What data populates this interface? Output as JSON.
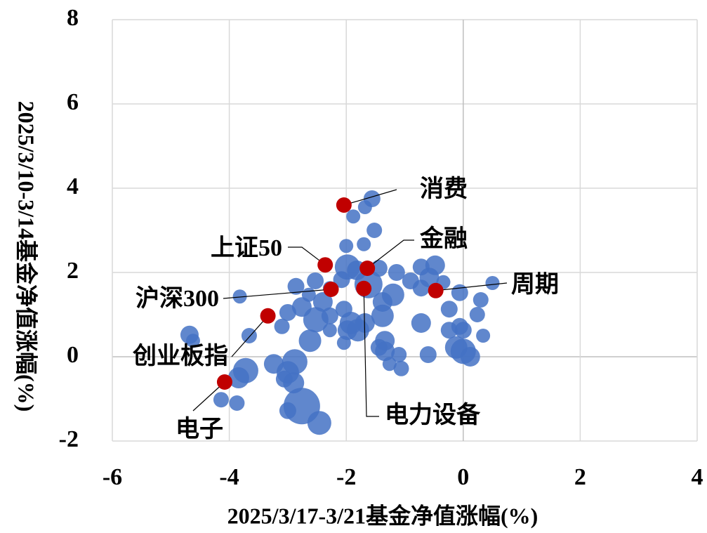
{
  "chart_data": {
    "type": "bubble",
    "xlabel": "2025/3/17-3/21基金净值涨幅(%)",
    "ylabel": "2025/3/10-3/14基金净值涨幅(%)",
    "xlim": [
      -6,
      4
    ],
    "ylim": [
      -2,
      8
    ],
    "xticks": [
      -6,
      -4,
      -2,
      0,
      2,
      4
    ],
    "yticks": [
      -2,
      0,
      2,
      4,
      6,
      8
    ],
    "grid": true,
    "series": [
      {
        "color": "#4472c4",
        "x": [
          -1.56,
          -1.68,
          -1.88,
          -1.52,
          -2.0,
          -1.7,
          -1.98,
          -1.82,
          -1.44,
          -2.53,
          -2.28,
          -2.08,
          -1.62,
          -1.14,
          -0.9,
          -0.58,
          -0.48,
          -0.34,
          -0.72,
          -1.2,
          -1.38,
          -0.06,
          0.3,
          0.5,
          -2.86,
          -2.64,
          -2.4,
          -2.76,
          -3.0,
          -2.52,
          -2.28,
          -2.04,
          -1.92,
          -1.68,
          -1.38,
          -3.82,
          -3.1,
          -3.66,
          -2.62,
          -2.28,
          -1.98,
          -1.8,
          -0.72,
          -0.06,
          0.24,
          -0.24,
          0,
          -4.68,
          -4.62,
          -2.04,
          -1.44,
          -1.34,
          -1.1,
          -0.6,
          -0.12,
          0,
          0.12,
          -1.26,
          -1.06,
          -3.24,
          -3.0,
          -2.88,
          -3.72,
          -3.84,
          -3.06,
          -2.9,
          -2.76,
          -3.0,
          -2.46,
          -3.87,
          -4.14,
          -1.34,
          0.34,
          -0.24,
          -0.72
        ],
        "values": [
          3.75,
          3.55,
          3.33,
          3.0,
          2.63,
          2.67,
          2.13,
          2.05,
          2.1,
          1.8,
          1.63,
          1.83,
          1.72,
          2.0,
          1.8,
          1.88,
          2.17,
          1.77,
          1.63,
          1.47,
          1.3,
          1.52,
          1.35,
          1.75,
          1.67,
          1.47,
          1.3,
          1.18,
          1.05,
          0.88,
          0.97,
          1.13,
          0.8,
          0.8,
          0.97,
          1.43,
          0.72,
          0.5,
          0.38,
          0.63,
          0.63,
          0.63,
          0.8,
          0.72,
          1.0,
          0.63,
          0.63,
          0.52,
          0.38,
          0.33,
          0.22,
          0.13,
          0.05,
          0.05,
          0.22,
          0.13,
          0,
          -0.17,
          -0.28,
          -0.17,
          -0.37,
          -0.12,
          -0.33,
          -0.5,
          -0.53,
          -0.62,
          -1.17,
          -1.28,
          -1.57,
          -1.1,
          -1.02,
          0.38,
          0.5,
          1.13,
          2.13
        ],
        "sizes": [
          12,
          10,
          10,
          11,
          10,
          10,
          18,
          14,
          12,
          12,
          10,
          12,
          20,
          12,
          12,
          14,
          14,
          10,
          12,
          16,
          14,
          12,
          11,
          10,
          12,
          10,
          14,
          14,
          12,
          18,
          12,
          12,
          16,
          14,
          16,
          10,
          11,
          11,
          16,
          10,
          14,
          16,
          14,
          12,
          11,
          12,
          12,
          13,
          10,
          10,
          12,
          14,
          11,
          12,
          16,
          18,
          14,
          10,
          11,
          14,
          16,
          18,
          18,
          15,
          12,
          15,
          26,
          12,
          17,
          11,
          11,
          14,
          10,
          12,
          12
        ]
      }
    ],
    "highlights": {
      "color": "#c00000",
      "labels": [
        "消费",
        "上证50",
        "金融",
        "沪深300",
        "周期",
        "电力设备",
        "创业板指",
        "电子"
      ],
      "x": [
        -2.04,
        -2.36,
        -1.64,
        -2.26,
        -0.47,
        -1.7,
        -3.34,
        -4.08
      ],
      "values": [
        3.6,
        2.18,
        2.1,
        1.6,
        1.57,
        1.62,
        0.97,
        -0.6
      ]
    }
  }
}
